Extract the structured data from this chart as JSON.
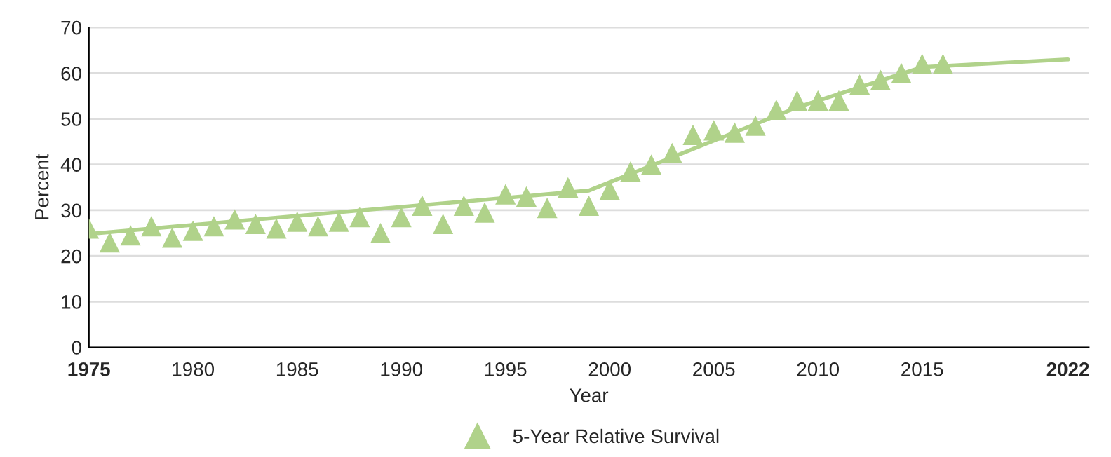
{
  "chart_data": {
    "type": "scatter",
    "xlabel": "Year",
    "ylabel": "Percent",
    "xlim": [
      1975,
      2023
    ],
    "xticks": [
      1975,
      1980,
      1985,
      1990,
      1995,
      2000,
      2005,
      2010,
      2015,
      2022
    ],
    "ylim": [
      0,
      70
    ],
    "yticks": [
      0,
      10,
      20,
      30,
      40,
      50,
      60,
      70
    ],
    "grid": "y",
    "legend": "bottom",
    "series": [
      {
        "name": "5-Year Relative Survival",
        "marker": "triangle",
        "color": "#b0d28a",
        "x": [
          1975,
          1976,
          1977,
          1978,
          1979,
          1980,
          1981,
          1982,
          1983,
          1984,
          1985,
          1986,
          1987,
          1988,
          1989,
          1990,
          1991,
          1992,
          1993,
          1994,
          1995,
          1996,
          1997,
          1998,
          1999,
          2000,
          2001,
          2002,
          2003,
          2004,
          2005,
          2006,
          2007,
          2008,
          2009,
          2010,
          2011,
          2012,
          2013,
          2014,
          2015,
          2016
        ],
        "values": [
          26,
          23,
          24.5,
          26.5,
          24,
          25.5,
          26.5,
          28,
          27,
          26,
          27.5,
          26.5,
          27.5,
          28.5,
          25,
          28.5,
          31,
          27,
          31,
          29.5,
          33.5,
          33,
          30.5,
          35,
          31,
          34.5,
          38.5,
          40,
          42.5,
          46.5,
          47.5,
          47,
          48.5,
          52,
          54,
          54,
          54,
          57.5,
          58.5,
          60,
          62,
          62
        ]
      },
      {
        "type": "line",
        "marker": "none",
        "color": "#b0d28a",
        "x": [
          1975,
          1999,
          2009,
          2015,
          2022
        ],
        "values": [
          24.8,
          34.3,
          52.5,
          61.3,
          63
        ]
      }
    ]
  }
}
